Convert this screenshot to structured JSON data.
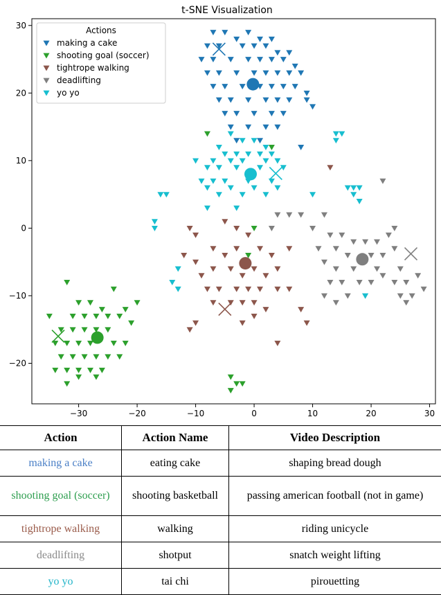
{
  "chart_data": {
    "type": "scatter",
    "title": "t-SNE Visualization",
    "xlabel": "",
    "ylabel": "",
    "xlim": [
      -38,
      31
    ],
    "ylim": [
      -26,
      31
    ],
    "xticks": [
      -30,
      -20,
      -10,
      0,
      10,
      20,
      30
    ],
    "yticks": [
      -20,
      -10,
      0,
      10,
      20,
      30
    ],
    "grid": false,
    "legend": {
      "title": "Actions",
      "position": "top-left"
    },
    "series": [
      {
        "name": "making a cake",
        "color": "#1f77b4",
        "centroid": [
          -0.2,
          21.3
        ],
        "cross": [
          -6.0,
          26.5
        ],
        "points": [
          [
            -7,
            29
          ],
          [
            -5,
            29
          ],
          [
            -3,
            28
          ],
          [
            -1,
            29
          ],
          [
            1,
            28
          ],
          [
            3,
            28
          ],
          [
            -8,
            27
          ],
          [
            -6,
            27
          ],
          [
            -2,
            27
          ],
          [
            0,
            27
          ],
          [
            2,
            27
          ],
          [
            4,
            26
          ],
          [
            6,
            26
          ],
          [
            -9,
            25
          ],
          [
            -7,
            25
          ],
          [
            -4,
            25
          ],
          [
            -1,
            25
          ],
          [
            1,
            25
          ],
          [
            3,
            25
          ],
          [
            5,
            25
          ],
          [
            7,
            24
          ],
          [
            -8,
            23
          ],
          [
            -6,
            23
          ],
          [
            -3,
            23
          ],
          [
            0,
            23
          ],
          [
            2,
            23
          ],
          [
            4,
            23
          ],
          [
            6,
            23
          ],
          [
            8,
            23
          ],
          [
            -7,
            21
          ],
          [
            -5,
            21
          ],
          [
            -2,
            21
          ],
          [
            1,
            21
          ],
          [
            3,
            21
          ],
          [
            5,
            21
          ],
          [
            7,
            21
          ],
          [
            9,
            20
          ],
          [
            -6,
            19
          ],
          [
            -4,
            19
          ],
          [
            -1,
            19
          ],
          [
            2,
            19
          ],
          [
            4,
            19
          ],
          [
            6,
            19
          ],
          [
            10,
            18
          ],
          [
            -5,
            17
          ],
          [
            -3,
            17
          ],
          [
            0,
            17
          ],
          [
            3,
            17
          ],
          [
            5,
            17
          ],
          [
            -4,
            15
          ],
          [
            -1,
            15
          ],
          [
            2,
            15
          ],
          [
            4,
            15
          ],
          [
            -3,
            13
          ],
          [
            1,
            13
          ],
          [
            8,
            12
          ],
          [
            9,
            19
          ]
        ]
      },
      {
        "name": "shooting goal (soccer)",
        "color": "#2ca02c",
        "centroid": [
          -26.8,
          -16.2
        ],
        "cross": [
          -33.5,
          -16.0
        ],
        "points": [
          [
            -32,
            -8
          ],
          [
            -30,
            -11
          ],
          [
            -28,
            -11
          ],
          [
            -26,
            -12
          ],
          [
            -24,
            -9
          ],
          [
            -22,
            -12
          ],
          [
            -20,
            -11
          ],
          [
            -35,
            -13
          ],
          [
            -31,
            -13
          ],
          [
            -29,
            -13
          ],
          [
            -27,
            -13
          ],
          [
            -25,
            -13
          ],
          [
            -23,
            -13
          ],
          [
            -33,
            -15
          ],
          [
            -31,
            -15
          ],
          [
            -29,
            -15
          ],
          [
            -27,
            -15
          ],
          [
            -25,
            -15
          ],
          [
            -21,
            -14
          ],
          [
            -34,
            -17
          ],
          [
            -32,
            -17
          ],
          [
            -30,
            -17
          ],
          [
            -28,
            -17
          ],
          [
            -24,
            -17
          ],
          [
            -22,
            -17
          ],
          [
            -33,
            -19
          ],
          [
            -31,
            -19
          ],
          [
            -29,
            -19
          ],
          [
            -27,
            -19
          ],
          [
            -25,
            -19
          ],
          [
            -23,
            -19
          ],
          [
            -34,
            -21
          ],
          [
            -32,
            -21
          ],
          [
            -30,
            -21
          ],
          [
            -28,
            -21
          ],
          [
            -26,
            -21
          ],
          [
            -32,
            -23
          ],
          [
            -30,
            -22
          ],
          [
            -27,
            -22
          ],
          [
            -4,
            -22
          ],
          [
            -3,
            -23
          ],
          [
            -4,
            -24
          ],
          [
            -2,
            -23
          ],
          [
            -8,
            14
          ],
          [
            3,
            12
          ],
          [
            0,
            0
          ],
          [
            -1,
            -4
          ]
        ]
      },
      {
        "name": "tightrope walking",
        "color": "#8c564b",
        "centroid": [
          -1.5,
          -5.2
        ],
        "cross": [
          -5.0,
          -12.0
        ],
        "points": [
          [
            -11,
            0
          ],
          [
            -10,
            -1
          ],
          [
            -5,
            1
          ],
          [
            -3,
            0
          ],
          [
            -1,
            -1
          ],
          [
            -12,
            -4
          ],
          [
            -10,
            -5
          ],
          [
            -7,
            -3
          ],
          [
            -5,
            -4
          ],
          [
            -3,
            -3
          ],
          [
            1,
            -3
          ],
          [
            3,
            -4
          ],
          [
            6,
            -3
          ],
          [
            -9,
            -7
          ],
          [
            -7,
            -6
          ],
          [
            -4,
            -6
          ],
          [
            -2,
            -7
          ],
          [
            0,
            -6
          ],
          [
            2,
            -7
          ],
          [
            4,
            -6
          ],
          [
            -8,
            -9
          ],
          [
            -6,
            -9
          ],
          [
            -3,
            -9
          ],
          [
            -1,
            -9
          ],
          [
            1,
            -9
          ],
          [
            4,
            -9
          ],
          [
            6,
            -9
          ],
          [
            -7,
            -11
          ],
          [
            -4,
            -11
          ],
          [
            -2,
            -11
          ],
          [
            0,
            -11
          ],
          [
            2,
            -12
          ],
          [
            8,
            -12
          ],
          [
            -10,
            -14
          ],
          [
            -2,
            -14
          ],
          [
            0,
            -13
          ],
          [
            9,
            -14
          ],
          [
            13,
            9
          ],
          [
            4,
            -17
          ],
          [
            -11,
            -15
          ]
        ]
      },
      {
        "name": "deadlifting",
        "color": "#7f7f7f",
        "centroid": [
          18.5,
          -4.6
        ],
        "cross": [
          26.8,
          -3.8
        ],
        "points": [
          [
            4,
            2
          ],
          [
            6,
            2
          ],
          [
            8,
            2
          ],
          [
            3,
            0
          ],
          [
            10,
            0
          ],
          [
            12,
            2
          ],
          [
            22,
            7
          ],
          [
            24,
            0
          ],
          [
            13,
            -1
          ],
          [
            15,
            -1
          ],
          [
            17,
            -2
          ],
          [
            19,
            -2
          ],
          [
            21,
            -2
          ],
          [
            23,
            -1
          ],
          [
            11,
            -3
          ],
          [
            14,
            -3
          ],
          [
            16,
            -4
          ],
          [
            20,
            -4
          ],
          [
            22,
            -4
          ],
          [
            24,
            -3
          ],
          [
            12,
            -5
          ],
          [
            14,
            -6
          ],
          [
            17,
            -6
          ],
          [
            21,
            -6
          ],
          [
            25,
            -6
          ],
          [
            13,
            -8
          ],
          [
            15,
            -8
          ],
          [
            18,
            -8
          ],
          [
            20,
            -8
          ],
          [
            22,
            -7
          ],
          [
            24,
            -8
          ],
          [
            26,
            -8
          ],
          [
            28,
            -7
          ],
          [
            12,
            -10
          ],
          [
            16,
            -10
          ],
          [
            19,
            -10
          ],
          [
            25,
            -10
          ],
          [
            27,
            -10
          ],
          [
            29,
            -9
          ],
          [
            26,
            -11
          ],
          [
            14,
            -11
          ]
        ]
      },
      {
        "name": "yo yo",
        "color": "#17becf",
        "centroid": [
          -0.6,
          8.0
        ],
        "cross": [
          3.7,
          8.1
        ],
        "points": [
          [
            -4,
            14
          ],
          [
            -2,
            13
          ],
          [
            0,
            13
          ],
          [
            2,
            12
          ],
          [
            -6,
            12
          ],
          [
            -5,
            11
          ],
          [
            -3,
            11
          ],
          [
            -1,
            11
          ],
          [
            1,
            11
          ],
          [
            3,
            11
          ],
          [
            -7,
            10
          ],
          [
            -4,
            10
          ],
          [
            -2,
            10
          ],
          [
            2,
            10
          ],
          [
            4,
            10
          ],
          [
            -10,
            10
          ],
          [
            -8,
            9
          ],
          [
            -6,
            9
          ],
          [
            -3,
            9
          ],
          [
            1,
            9
          ],
          [
            5,
            9
          ],
          [
            -9,
            7
          ],
          [
            -7,
            7
          ],
          [
            -5,
            7
          ],
          [
            -1,
            7
          ],
          [
            3,
            7
          ],
          [
            -8,
            6
          ],
          [
            -4,
            6
          ],
          [
            0,
            6
          ],
          [
            4,
            6
          ],
          [
            -6,
            5
          ],
          [
            -2,
            5
          ],
          [
            2,
            5
          ],
          [
            -3,
            3
          ],
          [
            -8,
            3
          ],
          [
            14,
            14
          ],
          [
            15,
            14
          ],
          [
            14,
            13
          ],
          [
            16,
            6
          ],
          [
            17,
            6
          ],
          [
            18,
            6
          ],
          [
            17,
            5
          ],
          [
            18,
            4
          ],
          [
            -15,
            5
          ],
          [
            -16,
            5
          ],
          [
            -17,
            1
          ],
          [
            -17,
            0
          ],
          [
            -13,
            -6
          ],
          [
            -14,
            -8
          ],
          [
            -13,
            -9
          ],
          [
            10,
            5
          ],
          [
            19,
            -10
          ]
        ]
      }
    ]
  },
  "table": {
    "headers": [
      "Action",
      "Action Name",
      "Video Description"
    ],
    "rows": [
      {
        "action": "making a cake",
        "name": "eating cake",
        "desc": "shaping bread dough",
        "color": "#4a7fc6"
      },
      {
        "action": "shooting goal (soccer)",
        "name": "shooting basketball",
        "desc": "passing american football (not in game)",
        "color": "#2e9e4f"
      },
      {
        "action": "tightrope walking",
        "name": "walking",
        "desc": "riding unicycle",
        "color": "#9a5b4a"
      },
      {
        "action": "deadlifting",
        "name": "shotput",
        "desc": "snatch weight lifting",
        "color": "#8a8a8a"
      },
      {
        "action": "yo yo",
        "name": "tai chi",
        "desc": "pirouetting",
        "color": "#22b5c9"
      }
    ]
  }
}
